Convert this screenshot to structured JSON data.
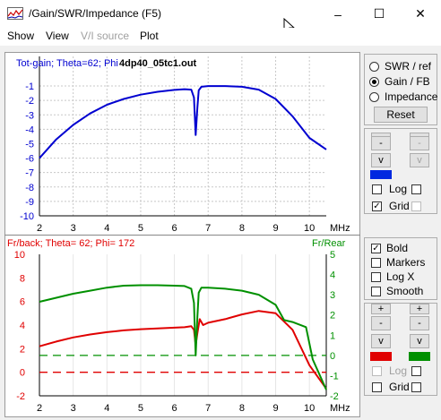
{
  "window": {
    "title": "/Gain/SWR/Impedance (F5)",
    "minimize": "–",
    "maximize": "☐",
    "close": "✕"
  },
  "menu": [
    {
      "label": "Show",
      "enabled": true
    },
    {
      "label": "View",
      "enabled": true
    },
    {
      "label": "V/I source",
      "enabled": false
    },
    {
      "label": "Plot",
      "enabled": true
    }
  ],
  "top_plot": {
    "header": "Tot-gain; Theta=62; Phi",
    "file": "4dp40_05tc1.out",
    "y_ticks": [
      "-1",
      "-2",
      "-3",
      "-4",
      "-5",
      "-6",
      "-7",
      "-8",
      "-9",
      "-10"
    ],
    "x_ticks": [
      "2",
      "3",
      "4",
      "5",
      "6",
      "7",
      "8",
      "9",
      "10"
    ],
    "x_unit": "MHz",
    "color": "#0000d0"
  },
  "bottom_plot": {
    "header": "Fr/back; Theta= 62; Phi= 172",
    "right_header": "Fr/Rear",
    "y_left_ticks": [
      "10",
      "8",
      "6",
      "4",
      "2",
      "0",
      "-2"
    ],
    "y_right_ticks": [
      "5",
      "4",
      "3",
      "2",
      "1",
      "0",
      "-1",
      "-2"
    ],
    "x_ticks": [
      "2",
      "3",
      "4",
      "5",
      "6",
      "7",
      "8",
      "9",
      "10"
    ],
    "x_unit": "MHz"
  },
  "chart_data": [
    {
      "type": "line",
      "title": "Tot-gain; Theta=62; Phi",
      "xlabel": "MHz",
      "xlim": [
        2,
        10.5
      ],
      "ylim": [
        -10,
        -0.5
      ],
      "series": [
        {
          "name": "Tot-gain",
          "color": "#0000d0",
          "x": [
            2,
            2.5,
            3,
            3.5,
            4,
            4.5,
            5,
            5.5,
            6,
            6.3,
            6.5,
            6.58,
            6.63,
            6.68,
            6.72,
            6.8,
            7,
            7.5,
            8,
            8.5,
            9,
            9.5,
            10,
            10.5
          ],
          "y": [
            -6.0,
            -4.7,
            -3.7,
            -2.9,
            -2.3,
            -1.9,
            -1.6,
            -1.4,
            -1.27,
            -1.22,
            -1.25,
            -1.8,
            -4.4,
            -2.5,
            -1.3,
            -1.05,
            -1.0,
            -1.0,
            -1.05,
            -1.25,
            -1.9,
            -3.1,
            -4.6,
            -5.4
          ]
        }
      ]
    },
    {
      "type": "line",
      "title": "Fr/back; Theta= 62; Phi= 172",
      "xlabel": "MHz",
      "xlim": [
        2,
        10.5
      ],
      "ylim": [
        -2,
        10
      ],
      "y2lim": [
        -2,
        5
      ],
      "series": [
        {
          "name": "Fr/back",
          "color": "#e00000",
          "axis": "left",
          "x": [
            2,
            2.5,
            3,
            3.5,
            4,
            4.5,
            5,
            5.5,
            6,
            6.3,
            6.5,
            6.58,
            6.63,
            6.68,
            6.75,
            6.85,
            7,
            7.5,
            8,
            8.5,
            9,
            9.5,
            10,
            10.5
          ],
          "y": [
            2.2,
            2.6,
            2.95,
            3.2,
            3.4,
            3.55,
            3.65,
            3.72,
            3.78,
            3.82,
            3.9,
            3.6,
            2.3,
            3.3,
            4.5,
            4.0,
            4.2,
            4.5,
            4.9,
            5.2,
            5.0,
            3.6,
            0.6,
            -1.4
          ]
        },
        {
          "name": "Fr/back (reference)",
          "color": "#e00000",
          "axis": "left",
          "dashed": true,
          "x": [
            2,
            10.5
          ],
          "y": [
            0,
            0
          ]
        },
        {
          "name": "Fr/Rear",
          "color": "#009000",
          "axis": "right",
          "x": [
            2,
            2.5,
            3,
            3.5,
            4,
            4.5,
            5,
            5.5,
            6,
            6.3,
            6.5,
            6.58,
            6.63,
            6.68,
            6.72,
            6.8,
            7,
            7.5,
            8,
            8.5,
            9,
            9.25,
            9.5,
            9.9,
            10.1,
            10.5
          ],
          "y": [
            2.65,
            2.85,
            3.05,
            3.2,
            3.35,
            3.45,
            3.47,
            3.47,
            3.45,
            3.43,
            3.3,
            2.6,
            0.0,
            1.9,
            3.1,
            3.35,
            3.35,
            3.3,
            3.2,
            3.0,
            2.5,
            1.75,
            1.65,
            1.4,
            -0.2,
            -1.7
          ]
        },
        {
          "name": "Fr/Rear (reference)",
          "color": "#009000",
          "axis": "right",
          "dashed": true,
          "x": [
            2,
            10.5
          ],
          "y": [
            0,
            0
          ]
        }
      ]
    }
  ],
  "panel_top": {
    "radios": [
      {
        "label": "SWR / ref",
        "checked": false
      },
      {
        "label": "Gain / FB",
        "checked": true
      },
      {
        "label": "Impedance",
        "checked": false
      }
    ],
    "reset": "Reset",
    "left_buttons": [
      "-",
      "-",
      "v"
    ],
    "right_buttons": [
      "-",
      "-",
      "v"
    ],
    "left_color": "#0028e0",
    "log_label": "Log",
    "grid_label": "Grid",
    "log_checked": false,
    "grid_checked": true
  },
  "panel_bottom": {
    "checks": [
      {
        "label": "Bold",
        "checked": true
      },
      {
        "label": "Markers",
        "checked": false
      },
      {
        "label": "Log X",
        "checked": false
      },
      {
        "label": "Smooth",
        "checked": false
      }
    ],
    "left_buttons": [
      "+",
      "-",
      "v"
    ],
    "right_buttons": [
      "+",
      "-",
      "v"
    ],
    "left_color": "#e00000",
    "right_color": "#009000",
    "log_label": "Log",
    "grid_label": "Grid",
    "log_checked": false,
    "grid_checked": false
  }
}
